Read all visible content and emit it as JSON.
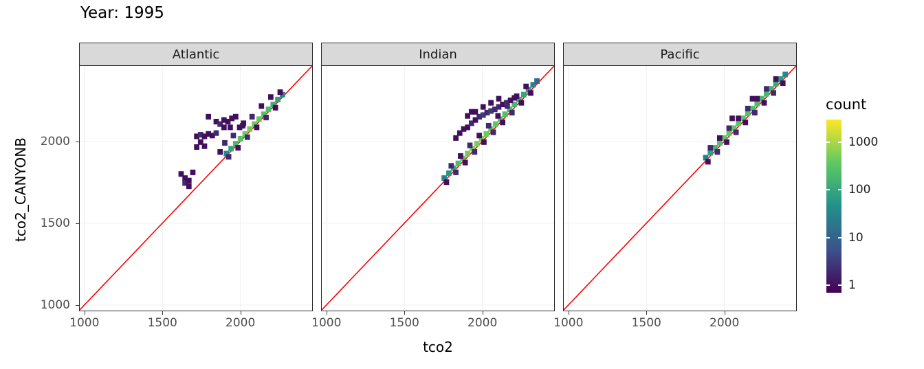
{
  "style": {
    "strip_bg": "#d9d9d9",
    "panel_border": "#2b2b2b",
    "grid": "#f0f0f0",
    "axis_text": "#4d4d4d",
    "viridis_stops": [
      "#440154",
      "#3b528b",
      "#21918c",
      "#5ec962",
      "#fde725"
    ]
  },
  "axes": {
    "x_label": "tco2",
    "y_label": "tco2_CANYONB"
  },
  "chart_data": {
    "type": "heatmap",
    "subtype": "bin2d",
    "title": "Year: 1995",
    "xlabel": "tco2",
    "ylabel": "tco2_CANYONB",
    "xlim": [
      970,
      2460
    ],
    "ylim": [
      970,
      2460
    ],
    "x_ticks": [
      1000,
      1500,
      2000
    ],
    "y_ticks": [
      1000,
      1500,
      2000
    ],
    "grid": "faint",
    "bin_size": 34,
    "reference_line": {
      "type": "y=x",
      "color": "#ff0000"
    },
    "colormap": "viridis",
    "count_scale": "log10",
    "legend": {
      "title": "count",
      "position": "right",
      "ticks": [
        1000,
        100,
        10,
        1
      ],
      "scale_min": 0.7,
      "scale_max": 3000
    },
    "facets": [
      {
        "label": "Atlantic",
        "bins": [
          [
            1910,
            1925,
            40
          ],
          [
            1940,
            1955,
            90
          ],
          [
            1970,
            1985,
            180
          ],
          [
            2000,
            2015,
            300
          ],
          [
            2030,
            2045,
            420
          ],
          [
            2060,
            2075,
            480
          ],
          [
            2090,
            2105,
            450
          ],
          [
            2120,
            2135,
            380
          ],
          [
            2150,
            2165,
            300
          ],
          [
            2180,
            2195,
            220
          ],
          [
            2210,
            2225,
            140
          ],
          [
            2240,
            2255,
            80
          ],
          [
            2270,
            2285,
            35
          ],
          [
            1925,
            1905,
            2
          ],
          [
            1985,
            1960,
            1
          ],
          [
            2045,
            2025,
            2
          ],
          [
            2105,
            2085,
            1
          ],
          [
            2165,
            2145,
            2
          ],
          [
            2225,
            2205,
            1
          ],
          [
            1955,
            2035,
            2
          ],
          [
            2015,
            2095,
            1
          ],
          [
            2075,
            2150,
            2
          ],
          [
            2135,
            2215,
            1
          ],
          [
            2195,
            2270,
            1
          ],
          [
            2255,
            2300,
            1
          ],
          [
            1620,
            1800,
            1
          ],
          [
            1645,
            1775,
            1
          ],
          [
            1645,
            1745,
            2
          ],
          [
            1670,
            1760,
            1
          ],
          [
            1670,
            1725,
            1
          ],
          [
            1695,
            1810,
            1
          ],
          [
            1720,
            2030,
            1
          ],
          [
            1745,
            2040,
            2
          ],
          [
            1770,
            2030,
            1
          ],
          [
            1795,
            2045,
            1
          ],
          [
            1745,
            1995,
            1
          ],
          [
            1770,
            1970,
            1
          ],
          [
            1820,
            2035,
            1
          ],
          [
            1845,
            2050,
            2
          ],
          [
            1720,
            1965,
            1
          ],
          [
            1795,
            2150,
            1
          ],
          [
            1845,
            2120,
            1
          ],
          [
            1870,
            2105,
            2
          ],
          [
            1895,
            2130,
            1
          ],
          [
            1920,
            2120,
            1
          ],
          [
            1945,
            2140,
            1
          ],
          [
            1970,
            2150,
            1
          ],
          [
            1895,
            2085,
            1
          ],
          [
            1935,
            2085,
            1
          ],
          [
            1870,
            1935,
            1
          ],
          [
            1900,
            1990,
            2
          ],
          [
            1995,
            2085,
            1
          ],
          [
            2020,
            2110,
            1
          ]
        ]
      },
      {
        "label": "Indian",
        "bins": [
          [
            1755,
            1775,
            25
          ],
          [
            1785,
            1805,
            60
          ],
          [
            1815,
            1835,
            120
          ],
          [
            1845,
            1865,
            220
          ],
          [
            1875,
            1895,
            350
          ],
          [
            1905,
            1925,
            480
          ],
          [
            1935,
            1955,
            550
          ],
          [
            1965,
            1985,
            520
          ],
          [
            1995,
            2015,
            470
          ],
          [
            2025,
            2045,
            420
          ],
          [
            2055,
            2075,
            380
          ],
          [
            2085,
            2105,
            340
          ],
          [
            2115,
            2135,
            300
          ],
          [
            2145,
            2165,
            260
          ],
          [
            2175,
            2195,
            220
          ],
          [
            2205,
            2225,
            180
          ],
          [
            2235,
            2255,
            140
          ],
          [
            2265,
            2285,
            100
          ],
          [
            2295,
            2315,
            60
          ],
          [
            2325,
            2345,
            30
          ],
          [
            2350,
            2368,
            12
          ],
          [
            1770,
            1750,
            1
          ],
          [
            1830,
            1810,
            2
          ],
          [
            1890,
            1870,
            1
          ],
          [
            1950,
            1935,
            2
          ],
          [
            2010,
            1995,
            1
          ],
          [
            2070,
            2055,
            2
          ],
          [
            2130,
            2115,
            1
          ],
          [
            2190,
            2175,
            2
          ],
          [
            2250,
            2235,
            1
          ],
          [
            2310,
            2295,
            1
          ],
          [
            1800,
            1850,
            2
          ],
          [
            1860,
            1910,
            1
          ],
          [
            1920,
            1975,
            2
          ],
          [
            1980,
            2035,
            1
          ],
          [
            2040,
            2095,
            2
          ],
          [
            2100,
            2155,
            1
          ],
          [
            2160,
            2215,
            2
          ],
          [
            2220,
            2275,
            1
          ],
          [
            2280,
            2335,
            1
          ],
          [
            1905,
            2085,
            1
          ],
          [
            1930,
            2110,
            2
          ],
          [
            1955,
            2130,
            1
          ],
          [
            1980,
            2150,
            2
          ],
          [
            2005,
            2160,
            3
          ],
          [
            2030,
            2175,
            2
          ],
          [
            2055,
            2185,
            3
          ],
          [
            2080,
            2195,
            2
          ],
          [
            2105,
            2210,
            2
          ],
          [
            2130,
            2225,
            1
          ],
          [
            2155,
            2235,
            2
          ],
          [
            2180,
            2250,
            1
          ],
          [
            2205,
            2265,
            1
          ],
          [
            1955,
            2180,
            1
          ],
          [
            2005,
            2210,
            1
          ],
          [
            2055,
            2235,
            1
          ],
          [
            2105,
            2260,
            1
          ],
          [
            1905,
            2155,
            1
          ],
          [
            1930,
            2180,
            1
          ],
          [
            1855,
            2050,
            1
          ],
          [
            1880,
            2075,
            1
          ],
          [
            1830,
            2020,
            1
          ]
        ]
      },
      {
        "label": "Pacific",
        "bins": [
          [
            1880,
            1900,
            30
          ],
          [
            1910,
            1930,
            80
          ],
          [
            1940,
            1960,
            160
          ],
          [
            1970,
            1990,
            260
          ],
          [
            2000,
            2020,
            330
          ],
          [
            2030,
            2050,
            350
          ],
          [
            2060,
            2080,
            330
          ],
          [
            2090,
            2110,
            300
          ],
          [
            2120,
            2140,
            280
          ],
          [
            2150,
            2170,
            260
          ],
          [
            2180,
            2200,
            240
          ],
          [
            2210,
            2230,
            220
          ],
          [
            2240,
            2260,
            200
          ],
          [
            2270,
            2290,
            180
          ],
          [
            2300,
            2320,
            150
          ],
          [
            2330,
            2350,
            110
          ],
          [
            2360,
            2380,
            70
          ],
          [
            2390,
            2408,
            35
          ],
          [
            1895,
            1875,
            1
          ],
          [
            1955,
            1935,
            2
          ],
          [
            2015,
            1995,
            1
          ],
          [
            2075,
            2055,
            2
          ],
          [
            2135,
            2115,
            1
          ],
          [
            2195,
            2175,
            2
          ],
          [
            2255,
            2235,
            1
          ],
          [
            2315,
            2295,
            2
          ],
          [
            2375,
            2355,
            1
          ],
          [
            1910,
            1960,
            2
          ],
          [
            1970,
            2020,
            1
          ],
          [
            2030,
            2080,
            2
          ],
          [
            2090,
            2140,
            1
          ],
          [
            2150,
            2200,
            2
          ],
          [
            2210,
            2260,
            1
          ],
          [
            2270,
            2320,
            2
          ],
          [
            2330,
            2380,
            1
          ],
          [
            2050,
            2140,
            1
          ],
          [
            2180,
            2260,
            1
          ]
        ]
      }
    ]
  }
}
